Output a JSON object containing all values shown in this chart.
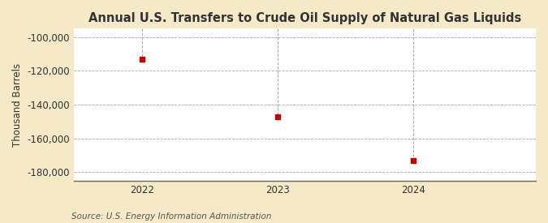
{
  "title": "Annual U.S. Transfers to Crude Oil Supply of Natural Gas Liquids",
  "ylabel": "Thousand Barrels",
  "x": [
    2022,
    2023,
    2024
  ],
  "y": [
    -113000,
    -147000,
    -173000
  ],
  "marker_color": "#c00000",
  "marker_size": 18,
  "ylim": [
    -185000,
    -95000
  ],
  "xlim": [
    2021.5,
    2024.9
  ],
  "yticks": [
    -100000,
    -120000,
    -140000,
    -160000,
    -180000
  ],
  "ytick_labels": [
    "-100,000",
    "-120,000",
    "-140,000",
    "-160,000",
    "-180,000"
  ],
  "xticks": [
    2022,
    2023,
    2024
  ],
  "figure_bg_color": "#f5e9c8",
  "plot_bg_color": "#ffffff",
  "grid_color": "#aaaaaa",
  "vline_color": "#aaaaaa",
  "title_fontsize": 10.5,
  "ylabel_fontsize": 8.5,
  "tick_fontsize": 8.5,
  "source_text": "Source: U.S. Energy Information Administration",
  "source_fontsize": 7.5
}
